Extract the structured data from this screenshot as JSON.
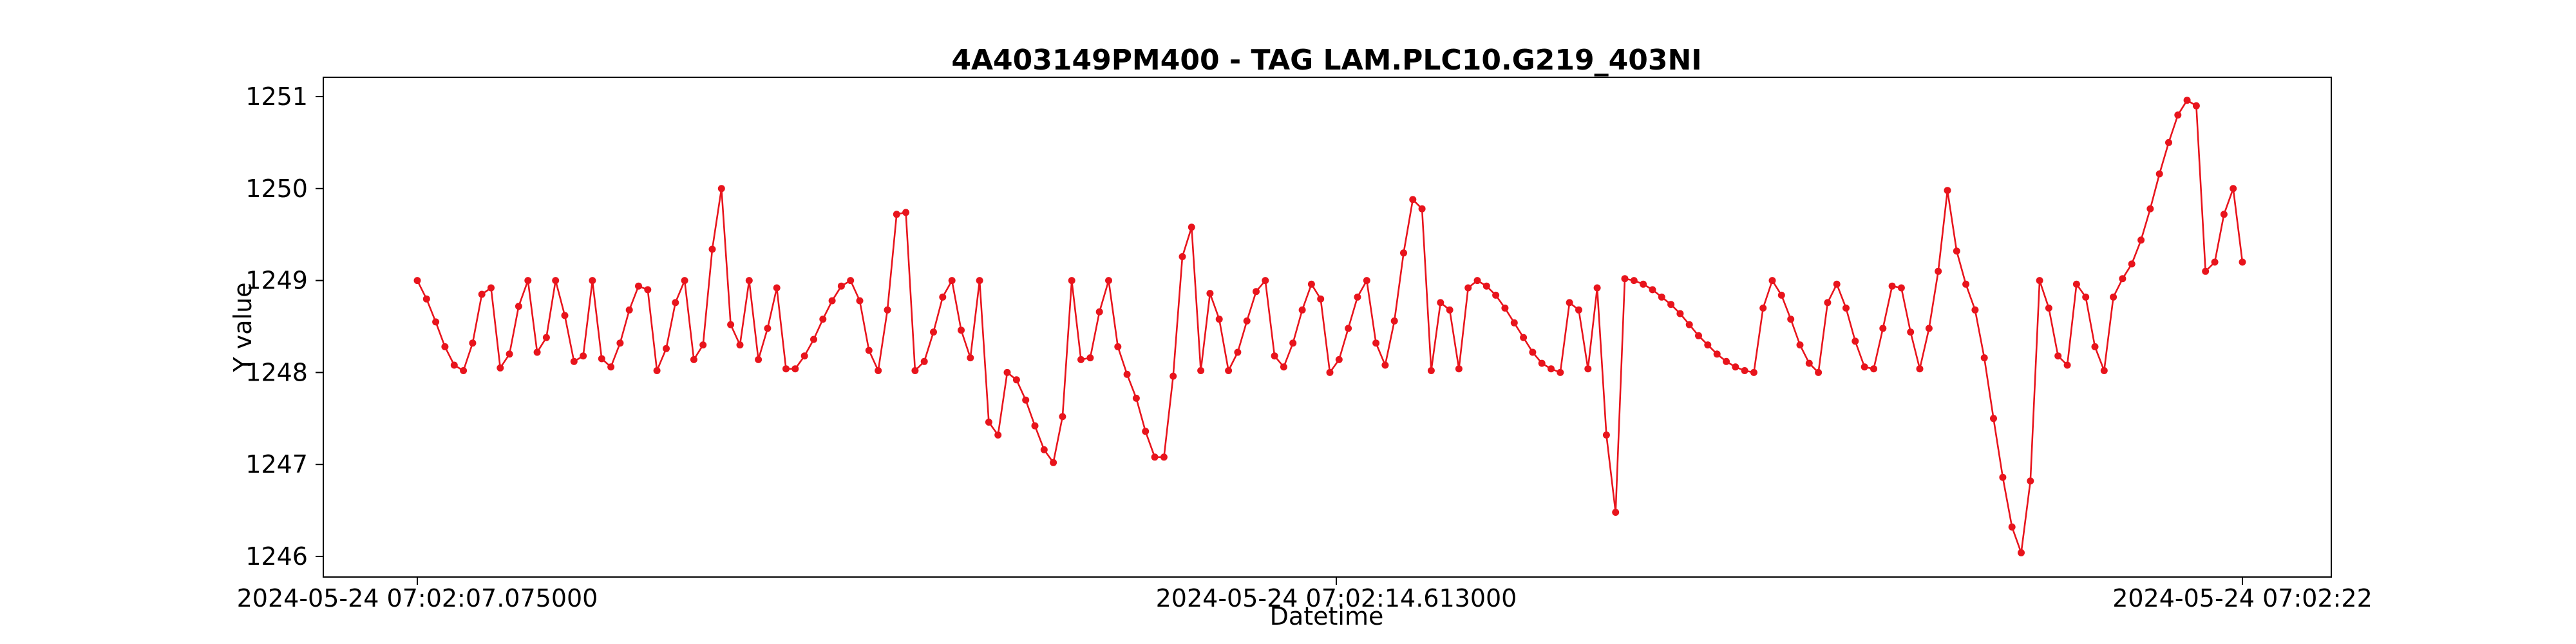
{
  "chart_data": {
    "type": "line",
    "title": "4A403149PM400 - TAG LAM.PLC10.G219_403NI",
    "xlabel": "Datetime",
    "ylabel": "Y value",
    "x_tick_labels": [
      "2024-05-24 07:02:07.075000",
      "2024-05-24 07:02:14.613000",
      "2024-05-24 07:02:22"
    ],
    "y_ticks": [
      1246,
      1247,
      1248,
      1249,
      1250,
      1251
    ],
    "ylim": [
      1245.8,
      1251.2
    ],
    "grid": false,
    "line_color": "#e8141c",
    "series": [
      {
        "values": [
          1249.0,
          1248.8,
          1248.55,
          1248.28,
          1248.08,
          1248.02,
          1248.32,
          1248.85,
          1248.92,
          1248.05,
          1248.2,
          1248.72,
          1249.0,
          1248.22,
          1248.38,
          1249.0,
          1248.62,
          1248.12,
          1248.18,
          1249.0,
          1248.15,
          1248.06,
          1248.32,
          1248.68,
          1248.94,
          1248.9,
          1248.02,
          1248.26,
          1248.76,
          1249.0,
          1248.14,
          1248.3,
          1249.34,
          1250.0,
          1248.52,
          1248.3,
          1249.0,
          1248.14,
          1248.48,
          1248.92,
          1248.04,
          1248.04,
          1248.18,
          1248.36,
          1248.58,
          1248.78,
          1248.94,
          1249.0,
          1248.78,
          1248.24,
          1248.02,
          1248.68,
          1249.72,
          1249.74,
          1248.02,
          1248.12,
          1248.44,
          1248.82,
          1249.0,
          1248.46,
          1248.16,
          1249.0,
          1247.46,
          1247.32,
          1248.0,
          1247.92,
          1247.7,
          1247.42,
          1247.16,
          1247.02,
          1247.52,
          1249.0,
          1248.14,
          1248.16,
          1248.66,
          1249.0,
          1248.28,
          1247.98,
          1247.72,
          1247.36,
          1247.08,
          1247.08,
          1247.96,
          1249.26,
          1249.58,
          1248.02,
          1248.86,
          1248.58,
          1248.02,
          1248.22,
          1248.56,
          1248.88,
          1249.0,
          1248.18,
          1248.06,
          1248.32,
          1248.68,
          1248.96,
          1248.8,
          1248.0,
          1248.14,
          1248.48,
          1248.82,
          1249.0,
          1248.32,
          1248.08,
          1248.56,
          1249.3,
          1249.88,
          1249.78,
          1248.02,
          1248.76,
          1248.68,
          1248.04,
          1248.92,
          1249.0,
          1248.94,
          1248.84,
          1248.7,
          1248.54,
          1248.38,
          1248.22,
          1248.1,
          1248.04,
          1248.0,
          1248.76,
          1248.68,
          1248.04,
          1248.92,
          1247.32,
          1246.48,
          1249.02,
          1249.0,
          1248.96,
          1248.9,
          1248.82,
          1248.74,
          1248.64,
          1248.52,
          1248.4,
          1248.3,
          1248.2,
          1248.12,
          1248.06,
          1248.02,
          1248.0,
          1248.7,
          1249.0,
          1248.84,
          1248.58,
          1248.3,
          1248.1,
          1248.0,
          1248.76,
          1248.96,
          1248.7,
          1248.34,
          1248.06,
          1248.04,
          1248.48,
          1248.94,
          1248.92,
          1248.44,
          1248.04,
          1248.48,
          1249.1,
          1249.98,
          1249.32,
          1248.96,
          1248.68,
          1248.16,
          1247.5,
          1246.86,
          1246.32,
          1246.04,
          1246.82,
          1249.0,
          1248.7,
          1248.18,
          1248.08,
          1248.96,
          1248.82,
          1248.28,
          1248.02,
          1248.82,
          1249.02,
          1249.18,
          1249.44,
          1249.78,
          1250.16,
          1250.5,
          1250.8,
          1250.96,
          1250.9,
          1249.1,
          1249.2,
          1249.72,
          1250.0,
          1249.2
        ]
      }
    ]
  }
}
